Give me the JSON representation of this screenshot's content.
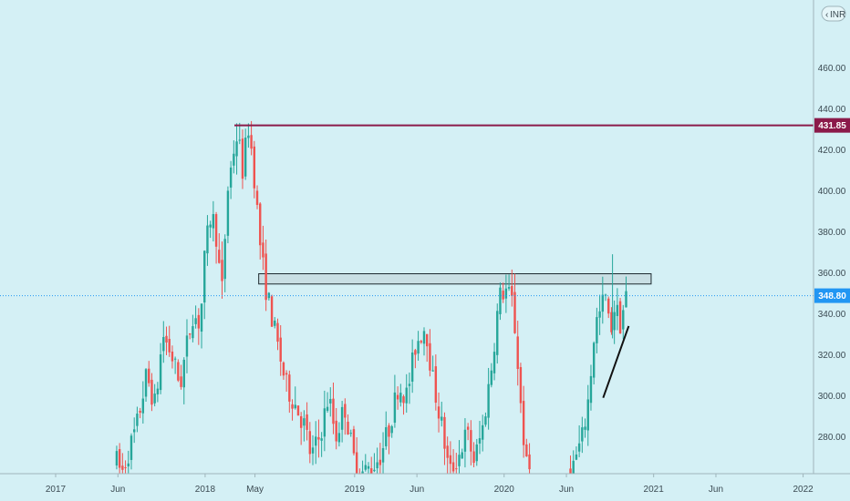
{
  "chart_data": {
    "type": "candlestick",
    "currency": "INR",
    "currency_prefix": "‹",
    "ylim": [
      262,
      485
    ],
    "y_ticks": [
      280,
      300,
      320,
      340,
      360,
      380,
      400,
      420,
      440,
      460
    ],
    "y_tick_labels": [
      "280.00",
      "300.00",
      "320.00",
      "340.00",
      "360.00",
      "380.00",
      "400.00",
      "420.00",
      "440.00",
      "460.00"
    ],
    "x_ticks": [
      {
        "label": "2017",
        "t": 0.0
      },
      {
        "label": "Jun",
        "t": 5.0
      },
      {
        "label": "2018",
        "t": 12.0
      },
      {
        "label": "May",
        "t": 16.0
      },
      {
        "label": "2019",
        "t": 24.0
      },
      {
        "label": "Jun",
        "t": 29.0
      },
      {
        "label": "2020",
        "t": 36.0
      },
      {
        "label": "Jun",
        "t": 41.0
      },
      {
        "label": "2021",
        "t": 48.0
      },
      {
        "label": "Jun",
        "t": 53.0
      },
      {
        "label": "2022",
        "t": 60.0
      }
    ],
    "resistance_line": {
      "value": 431.85,
      "label": "431.85",
      "color": "#8b1a4a",
      "start_t": 14.35
    },
    "current_price": {
      "value": 348.8,
      "label": "348.80",
      "color": "#2196f3"
    },
    "zone": {
      "t_start": 16.3,
      "t_end": 47.8,
      "low": 354.5,
      "high": 359.5
    },
    "trendline": {
      "t1": 43.95,
      "v1": 299,
      "t2": 46.0,
      "v2": 334
    },
    "up_color": "#26a69a",
    "down_color": "#ef5350",
    "ohlc_keypoints": [
      [
        4.9,
        268
      ],
      [
        5.3,
        262
      ],
      [
        6.5,
        285
      ],
      [
        7.3,
        310
      ],
      [
        8.0,
        295
      ],
      [
        8.6,
        330
      ],
      [
        9.3,
        320
      ],
      [
        10.0,
        305
      ],
      [
        10.4,
        320
      ],
      [
        11.0,
        340
      ],
      [
        11.6,
        335
      ],
      [
        12.0,
        370
      ],
      [
        12.5,
        390
      ],
      [
        13.0,
        375
      ],
      [
        13.3,
        345
      ],
      [
        13.8,
        400
      ],
      [
        14.3,
        420
      ],
      [
        14.6,
        428
      ],
      [
        15.0,
        410
      ],
      [
        15.5,
        432
      ],
      [
        15.9,
        410
      ],
      [
        16.4,
        375
      ],
      [
        16.8,
        355
      ],
      [
        17.3,
        340
      ],
      [
        17.8,
        325
      ],
      [
        18.5,
        305
      ],
      [
        19.3,
        295
      ],
      [
        20.0,
        285
      ],
      [
        20.5,
        270
      ],
      [
        21.2,
        280
      ],
      [
        21.9,
        300
      ],
      [
        22.5,
        280
      ],
      [
        23.2,
        295
      ],
      [
        23.9,
        270
      ],
      [
        24.5,
        262
      ],
      [
        25.3,
        265
      ],
      [
        26.0,
        270
      ],
      [
        26.8,
        285
      ],
      [
        27.5,
        305
      ],
      [
        28.2,
        300
      ],
      [
        28.9,
        325
      ],
      [
        29.7,
        335
      ],
      [
        30.2,
        310
      ],
      [
        31.0,
        285
      ],
      [
        31.6,
        262
      ],
      [
        32.3,
        270
      ],
      [
        33.0,
        282
      ],
      [
        33.6,
        268
      ],
      [
        34.3,
        285
      ],
      [
        35.0,
        315
      ],
      [
        35.6,
        348
      ],
      [
        36.1,
        352
      ],
      [
        36.7,
        345
      ],
      [
        37.1,
        315
      ],
      [
        37.4,
        290
      ],
      [
        37.8,
        265
      ],
      [
        38.5,
        262
      ],
      [
        40.5,
        262
      ],
      [
        41.5,
        265
      ],
      [
        42.3,
        280
      ],
      [
        42.8,
        300
      ],
      [
        43.3,
        335
      ],
      [
        43.7,
        340
      ],
      [
        44.1,
        350
      ],
      [
        44.5,
        330
      ],
      [
        44.9,
        345
      ],
      [
        45.3,
        335
      ],
      [
        45.8,
        348.8
      ]
    ],
    "big_wick_at": [
      44.7,
      328,
      369
    ]
  }
}
